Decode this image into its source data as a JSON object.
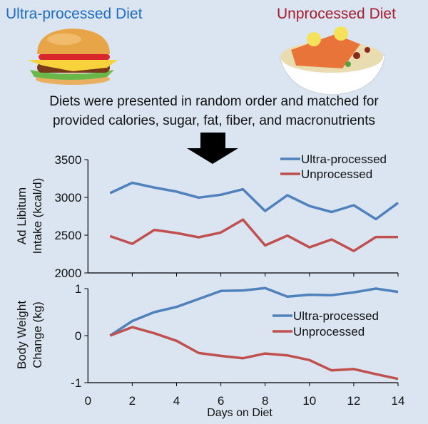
{
  "header": {
    "left_title": "Ultra-processed Diet",
    "right_title": "Unprocessed Diet",
    "description_line1": "Diets were presented in random order and matched for",
    "description_line2": "provided calories, sugar, fat, fiber, and macronutrients",
    "left_image_icon": "hamburger-icon",
    "right_image_icon": "salmon-bowl-icon",
    "arrow_icon": "arrow-down-icon",
    "left_color": "#1f6cc1",
    "right_color": "#a61c2c"
  },
  "chart_data": [
    {
      "type": "line",
      "ylabel_line1": "Ad Libitum",
      "ylabel_line2": "Intake (kcal/d)",
      "ylim": [
        2000,
        3500
      ],
      "yticks": [
        "2000",
        "2500",
        "3000",
        "3500"
      ],
      "x": [
        1,
        2,
        3,
        4,
        5,
        6,
        7,
        8,
        9,
        10,
        11,
        12,
        13,
        14
      ],
      "legend_position": "top-right",
      "series": [
        {
          "name": "Ultra-processed",
          "color": "#4f81bd",
          "values": [
            3057,
            3193,
            3130,
            3076,
            2997,
            3035,
            3108,
            2820,
            3028,
            2886,
            2807,
            2896,
            2712,
            2927
          ]
        },
        {
          "name": "Unprocessed",
          "color": "#c0504d",
          "values": [
            2487,
            2386,
            2570,
            2528,
            2472,
            2535,
            2706,
            2364,
            2494,
            2339,
            2443,
            2291,
            2475,
            2475
          ]
        }
      ]
    },
    {
      "type": "line",
      "ylabel_line1": "Body Weight",
      "ylabel_line2": "Change (kg)",
      "xlabel": "Days on Diet",
      "xlim": [
        0,
        14
      ],
      "xticks": [
        "0",
        "2",
        "4",
        "6",
        "8",
        "10",
        "12",
        "14"
      ],
      "ylim": [
        -1,
        1
      ],
      "yticks": [
        "-1",
        "0",
        "1"
      ],
      "x": [
        1,
        2,
        3,
        4,
        5,
        6,
        7,
        8,
        9,
        10,
        11,
        12,
        13,
        14
      ],
      "legend_position": "center-right",
      "series": [
        {
          "name": "Ultra-processed",
          "color": "#4f81bd",
          "values": [
            0,
            0.31,
            0.5,
            0.61,
            0.78,
            0.95,
            0.96,
            1.01,
            0.83,
            0.87,
            0.86,
            0.92,
            1.0,
            0.93
          ]
        },
        {
          "name": "Unprocessed",
          "color": "#c0504d",
          "values": [
            0,
            0.18,
            0.05,
            -0.11,
            -0.37,
            -0.43,
            -0.48,
            -0.38,
            -0.42,
            -0.52,
            -0.74,
            -0.71,
            -0.82,
            -0.92
          ]
        }
      ]
    }
  ]
}
